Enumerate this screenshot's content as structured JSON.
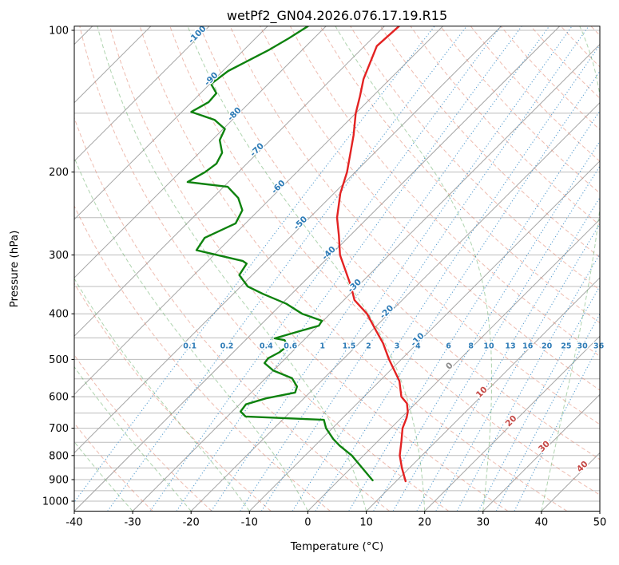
{
  "title": "wetPf2_GN04.2026.076.17.19.R15",
  "axes": {
    "x_label": "Temperature (°C)",
    "y_label": "Pressure (hPa)",
    "x_ticks": [
      -40,
      -30,
      -20,
      -10,
      0,
      10,
      20,
      30,
      40,
      50
    ],
    "y_ticks": [
      100,
      200,
      300,
      400,
      500,
      600,
      700,
      800,
      900,
      1000
    ]
  },
  "chart_data": {
    "type": "line",
    "subtype": "skewt-log-p",
    "title": "wetPf2_GN04.2026.076.17.19.R15",
    "x_axis": {
      "label": "Temperature (°C)",
      "min": -40,
      "max": 50,
      "skew_deg": 45
    },
    "y_axis": {
      "label": "Pressure (hPa)",
      "min": 98,
      "max": 1050,
      "scale": "log"
    },
    "pressure_gridlines_hpa": [
      100,
      150,
      200,
      250,
      300,
      350,
      400,
      450,
      500,
      550,
      600,
      650,
      700,
      750,
      800,
      850,
      900,
      950,
      1000
    ],
    "isotherms": {
      "start": -120,
      "end": 50,
      "step": 10,
      "label_values": [
        -100,
        -90,
        -80,
        -70,
        -60,
        -50,
        -40,
        -30,
        -20,
        -10,
        0,
        10,
        20,
        30,
        40
      ],
      "label_pressures": [
        103,
        128,
        152,
        181,
        217,
        259,
        300,
        352,
        400,
        458,
        521,
        592,
        682,
        772,
        852
      ]
    },
    "dry_adiabats_theta_c": {
      "start": -30,
      "end": 200,
      "step": 10
    },
    "moist_adiabats_t0_c": {
      "start": -40,
      "end": 90,
      "step": 10
    },
    "mixing_ratio_g_kg": [
      0.1,
      0.2,
      0.4,
      0.6,
      1,
      1.5,
      2,
      3,
      4,
      6,
      8,
      10,
      13,
      16,
      20,
      25,
      30,
      36
    ],
    "mixing_label_pressure_hpa": 468,
    "series": [
      {
        "name": "temperature",
        "color": "#e32222",
        "points": [
          [
            907,
            11.6
          ],
          [
            850,
            8.7
          ],
          [
            800,
            6.2
          ],
          [
            745,
            4.0
          ],
          [
            700,
            2.0
          ],
          [
            665,
            0.9
          ],
          [
            646,
            0.1
          ],
          [
            620,
            -1.5
          ],
          [
            600,
            -3.6
          ],
          [
            556,
            -6.6
          ],
          [
            540,
            -8.1
          ],
          [
            500,
            -12.1
          ],
          [
            462,
            -15.9
          ],
          [
            434,
            -19.3
          ],
          [
            400,
            -23.7
          ],
          [
            374,
            -28.2
          ],
          [
            350,
            -31.1
          ],
          [
            300,
            -38.4
          ],
          [
            273,
            -41.9
          ],
          [
            250,
            -45.3
          ],
          [
            222,
            -48.9
          ],
          [
            200,
            -51.4
          ],
          [
            167,
            -56.6
          ],
          [
            150,
            -60.0
          ],
          [
            138,
            -62.2
          ],
          [
            127,
            -64.5
          ],
          [
            108,
            -67.9
          ],
          [
            98,
            -67.5
          ]
        ]
      },
      {
        "name": "dewpoint",
        "color": "#0e820e",
        "points": [
          [
            903,
            5.8
          ],
          [
            850,
            1.9
          ],
          [
            800,
            -2.0
          ],
          [
            762,
            -5.8
          ],
          [
            738,
            -8.0
          ],
          [
            700,
            -11.1
          ],
          [
            672,
            -12.9
          ],
          [
            661,
            -26.9
          ],
          [
            645,
            -28.6
          ],
          [
            623,
            -28.9
          ],
          [
            605,
            -26.5
          ],
          [
            588,
            -22.5
          ],
          [
            571,
            -23.2
          ],
          [
            548,
            -25.5
          ],
          [
            528,
            -30.0
          ],
          [
            509,
            -32.8
          ],
          [
            497,
            -33.0
          ],
          [
            483,
            -32.1
          ],
          [
            468,
            -31.8
          ],
          [
            455,
            -33.3
          ],
          [
            451,
            -35.3
          ],
          [
            424,
            -29.9
          ],
          [
            414,
            -30.2
          ],
          [
            400,
            -34.8
          ],
          [
            381,
            -39.2
          ],
          [
            363,
            -44.9
          ],
          [
            350,
            -48.8
          ],
          [
            331,
            -52.2
          ],
          [
            313,
            -52.9
          ],
          [
            309,
            -54.0
          ],
          [
            293,
            -63.8
          ],
          [
            276,
            -64.5
          ],
          [
            257,
            -61.7
          ],
          [
            241,
            -62.8
          ],
          [
            227,
            -65.6
          ],
          [
            215,
            -69.3
          ],
          [
            210,
            -77.0
          ],
          [
            200,
            -75.7
          ],
          [
            192,
            -75.2
          ],
          [
            182,
            -76.1
          ],
          [
            171,
            -78.7
          ],
          [
            162,
            -79.7
          ],
          [
            155,
            -83.0
          ],
          [
            149,
            -88.4
          ],
          [
            142,
            -87.1
          ],
          [
            136,
            -87.3
          ],
          [
            130,
            -89.8
          ],
          [
            122,
            -89.1
          ],
          [
            117,
            -87.7
          ],
          [
            110,
            -85.7
          ],
          [
            104,
            -84.3
          ],
          [
            98,
            -83.1
          ]
        ]
      }
    ],
    "style": {
      "grid_color": "#bcbcbc",
      "isotherm_color": "#a5a5a5",
      "dry_adiabat_color": "#e08570",
      "moist_adiabat_color": "#5faa5f",
      "mixing_line_color": "#3f8fc9",
      "temperature_color": "#e32222",
      "dewpoint_color": "#0e820e",
      "label_cold": "#2d7bb6",
      "label_warm": "#c44744",
      "label_zero": "#8a8a8a"
    }
  }
}
